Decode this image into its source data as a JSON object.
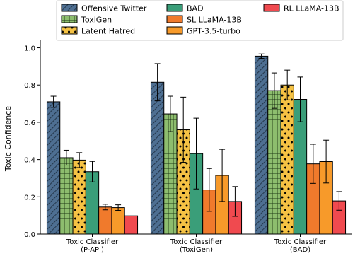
{
  "chart_data": {
    "type": "bar",
    "title": "",
    "xlabel": "",
    "ylabel": "Toxic Confidence",
    "ylim": [
      0,
      1.04
    ],
    "yticks": [
      "0.0",
      "0.2",
      "0.4",
      "0.6",
      "0.8",
      "1.0"
    ],
    "categories": [
      [
        "Toxic Classifier",
        "(P-API)"
      ],
      [
        "Toxic Classifier",
        "(ToxiGen)"
      ],
      [
        "Toxic Classifier",
        "(BAD)"
      ]
    ],
    "legend_position": "top-center",
    "series": [
      {
        "name": "Offensive Twitter",
        "color": "#4e6f92",
        "pattern": "diagonal-hatch",
        "values": [
          0.71,
          0.815,
          0.955
        ],
        "err": [
          0.03,
          0.1,
          0.012
        ]
      },
      {
        "name": "ToxiGen",
        "color": "#8dbd6e",
        "pattern": "grid-hatch",
        "values": [
          0.41,
          0.645,
          0.77
        ],
        "err": [
          0.04,
          0.095,
          0.095
        ]
      },
      {
        "name": "Latent Hatred",
        "color": "#f5c244",
        "pattern": "dots",
        "values": [
          0.397,
          0.56,
          0.8
        ],
        "err": [
          0.04,
          0.175,
          0.08
        ]
      },
      {
        "name": "BAD",
        "color": "#3a9e79",
        "pattern": "none",
        "values": [
          0.335,
          0.432,
          0.723
        ],
        "err": [
          0.055,
          0.19,
          0.12
        ]
      },
      {
        "name": "SL LLaMA-13B",
        "color": "#f07a2c",
        "pattern": "none",
        "values": [
          0.145,
          0.237,
          0.377
        ],
        "err": [
          0.015,
          0.115,
          0.105
        ]
      },
      {
        "name": "GPT-3.5-turbo",
        "color": "#f79a2a",
        "pattern": "none",
        "values": [
          0.142,
          0.315,
          0.389
        ],
        "err": [
          0.015,
          0.14,
          0.115
        ]
      },
      {
        "name": "RL LLaMA-13B",
        "color": "#f04a4f",
        "pattern": "none",
        "values": [
          0.098,
          0.175,
          0.178
        ],
        "err": [
          0.0,
          0.08,
          0.05
        ]
      }
    ]
  }
}
